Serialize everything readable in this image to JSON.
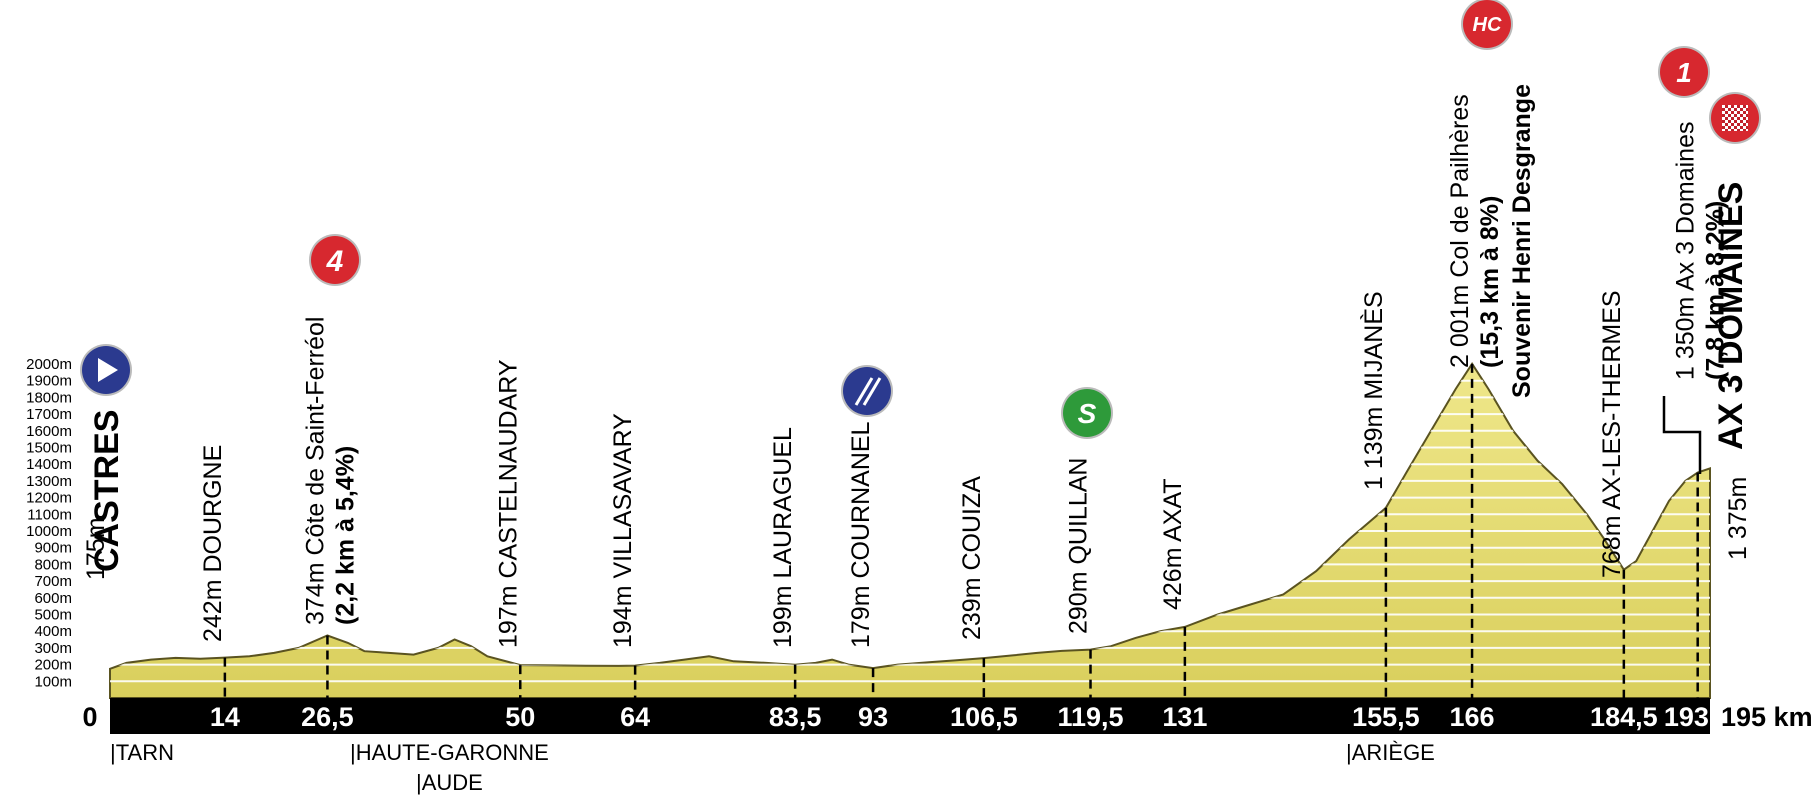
{
  "chart_data": {
    "type": "area",
    "x_unit": "km",
    "y_unit": "m",
    "ylim": [
      0,
      2000
    ],
    "xlim": [
      0,
      195
    ],
    "y_ticks": [
      "100m",
      "200m",
      "300m",
      "400m",
      "500m",
      "600m",
      "700m",
      "800m",
      "900m",
      "1000m",
      "1100m",
      "1200m",
      "1300m",
      "1400m",
      "1500m",
      "1600m",
      "1700m",
      "1800m",
      "1900m",
      "2000m"
    ],
    "x_tick_labels": [
      "0",
      "14",
      "26,5",
      "50",
      "64",
      "83,5",
      "93",
      "106,5",
      "119,5",
      "131",
      "155,5",
      "166",
      "184,5",
      "193,5",
      "195 km"
    ],
    "profile": {
      "x": [
        0,
        2,
        5,
        8,
        11,
        14,
        17,
        20,
        23,
        26.5,
        29,
        31,
        34,
        37,
        40,
        42,
        44,
        46,
        50,
        54,
        58,
        62,
        64,
        67,
        70,
        73,
        76,
        80,
        83.5,
        86,
        88,
        90,
        93,
        96,
        100,
        103,
        106.5,
        110,
        113,
        116,
        119.5,
        122,
        125,
        128,
        131,
        135,
        139,
        143,
        147,
        151,
        155.5,
        158,
        161,
        164,
        166,
        168,
        171,
        174,
        177,
        180,
        182,
        184.5,
        186,
        188,
        190,
        192,
        193.5,
        195
      ],
      "y": [
        175,
        210,
        230,
        240,
        235,
        242,
        250,
        270,
        300,
        374,
        330,
        280,
        270,
        260,
        300,
        350,
        310,
        250,
        197,
        195,
        193,
        192,
        194,
        210,
        230,
        250,
        220,
        210,
        199,
        210,
        230,
        200,
        179,
        200,
        215,
        225,
        239,
        255,
        270,
        282,
        290,
        310,
        360,
        400,
        426,
        500,
        560,
        620,
        760,
        950,
        1139,
        1350,
        1600,
        1850,
        2001,
        1850,
        1600,
        1420,
        1280,
        1100,
        960,
        768,
        820,
        1000,
        1180,
        1300,
        1350,
        1375
      ]
    },
    "points": [
      {
        "km": "0",
        "alt": "175m",
        "name": "CASTRES"
      },
      {
        "km": "14",
        "alt": "242m",
        "name": "DOURGNE"
      },
      {
        "km": "26,5",
        "alt": "374m",
        "name": "Côte de Saint-Ferréol",
        "climb": "(2,2 km à 5,4%)",
        "category": "4"
      },
      {
        "km": "50",
        "alt": "197m",
        "name": "CASTELNAUDARY"
      },
      {
        "km": "64",
        "alt": "194m",
        "name": "VILLASAVARY"
      },
      {
        "km": "83,5",
        "alt": "199m",
        "name": "LAURAGUEL"
      },
      {
        "km": "93",
        "alt": "179m",
        "name": "COURNANEL"
      },
      {
        "km": "106,5",
        "alt": "239m",
        "name": "COUIZA"
      },
      {
        "km": "119,5",
        "alt": "290m",
        "name": "QUILLAN"
      },
      {
        "km": "131",
        "alt": "426m",
        "name": "AXAT"
      },
      {
        "km": "155,5",
        "alt": "1 139m",
        "name": "MIJANÈS"
      },
      {
        "km": "166",
        "alt": "2 001m",
        "name": "Col de Pailhères",
        "climb": "(15,3 km à 8%)",
        "souvenir": "Souvenir Henri Desgrange",
        "category": "HC"
      },
      {
        "km": "184,5",
        "alt": "768m",
        "name": "AX-LES-THERMES"
      },
      {
        "km": "193,5",
        "alt": "1 350m",
        "name": "Ax 3 Domaines",
        "climb": "(7,8 km à 8,2%)",
        "category": "1"
      },
      {
        "km": "195",
        "alt": "1 375m",
        "name": "AX 3 DOMAINES"
      }
    ],
    "regions": [
      {
        "label": "|TARN"
      },
      {
        "label": "|HAUTE-GARONNE"
      },
      {
        "label": "|AUDE"
      },
      {
        "label": "|ARIÈGE"
      }
    ],
    "badges": {
      "cat4": "4",
      "hc": "HC",
      "cat1": "1",
      "sprint": "S"
    },
    "colors": {
      "profile_fill": "#e9e07a",
      "profile_stroke": "#5a5320",
      "axis_bar": "#000000",
      "climb_badge": "#d7282f",
      "start_badge": "#2b3a8f",
      "feed_badge": "#2b3a8f",
      "sprint_badge": "#2e9a3a"
    }
  }
}
